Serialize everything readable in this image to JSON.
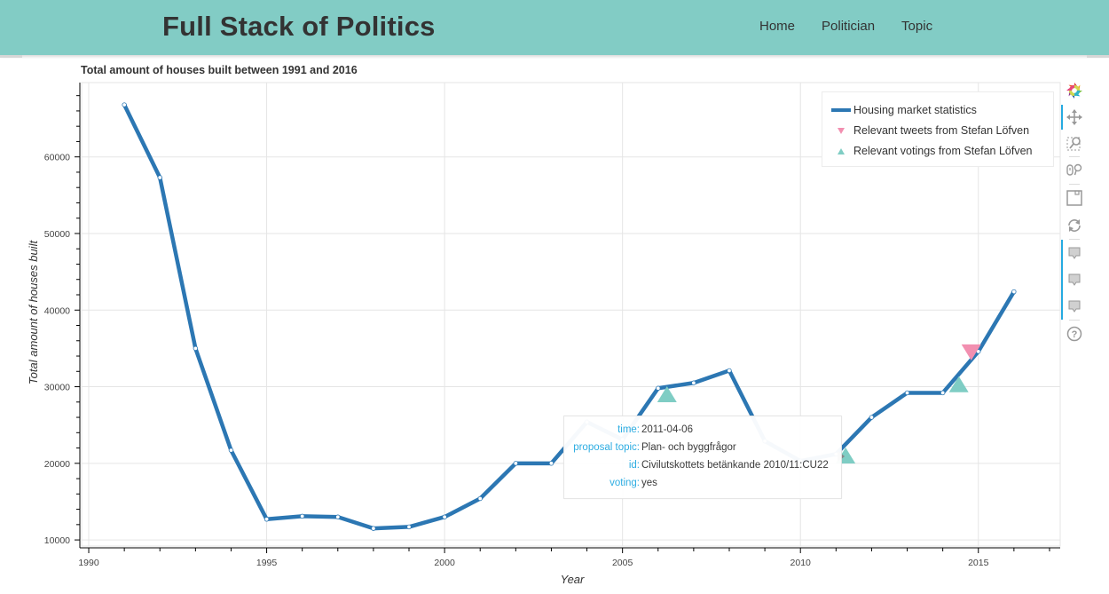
{
  "navbar": {
    "brand": "Full Stack of Politics",
    "links": [
      {
        "label": "Home"
      },
      {
        "label": "Politician"
      },
      {
        "label": "Topic"
      }
    ],
    "background": "#82ccc5"
  },
  "toolbar": {
    "tools": [
      {
        "name": "bokeh-logo-icon",
        "active": false
      },
      {
        "name": "pan-icon",
        "active": true
      },
      {
        "name": "box-zoom-icon",
        "active": false
      },
      {
        "name": "wheel-zoom-icon",
        "active": false
      },
      {
        "name": "save-icon",
        "active": false
      },
      {
        "name": "reset-icon",
        "active": false
      },
      {
        "name": "hover-icon",
        "active": true
      },
      {
        "name": "hover-icon",
        "active": true
      },
      {
        "name": "hover-icon",
        "active": true
      },
      {
        "name": "help-icon",
        "active": false
      }
    ]
  },
  "tooltip": {
    "rows": [
      {
        "key": "time:",
        "value": "2011-04-06"
      },
      {
        "key": "proposal topic:",
        "value": "Plan- och byggfrågor"
      },
      {
        "key": "id:",
        "value": "Civilutskottets betänkande 2010/11:CU22"
      },
      {
        "key": "voting:",
        "value": "yes"
      }
    ]
  },
  "chart_data": {
    "type": "line",
    "title": "Total amount of houses built between 1991 and 2016",
    "xlabel": "Year",
    "ylabel": "Total amount of houses built",
    "xlim": [
      1989.8,
      2017.3
    ],
    "ylim": [
      9200,
      69700
    ],
    "x_ticks": [
      1990,
      1995,
      2000,
      2005,
      2010,
      2015
    ],
    "x_minor_step": 1,
    "y_ticks": [
      10000,
      20000,
      30000,
      40000,
      50000,
      60000
    ],
    "y_minor_step": 2000,
    "grid": true,
    "legend_position": "top-right",
    "colors": {
      "line": "#2c77b3",
      "tweet": "#f28fb0",
      "voting": "#7fcdc4",
      "hover": "#888888"
    },
    "series": [
      {
        "name": "Housing market statistics",
        "kind": "line",
        "x": [
          1991,
          1992,
          1993,
          1994,
          1995,
          1996,
          1997,
          1998,
          1999,
          2000,
          2001,
          2002,
          2003,
          2004,
          2005,
          2006,
          2007,
          2008,
          2009,
          2010,
          2011,
          2012,
          2013,
          2014,
          2015,
          2016
        ],
        "y": [
          66800,
          57300,
          35000,
          21700,
          12700,
          13100,
          13000,
          11500,
          11700,
          13000,
          15400,
          20000,
          20000,
          25400,
          23100,
          29800,
          30500,
          32100,
          22900,
          20300,
          21200,
          26000,
          29200,
          29200,
          34600,
          42400
        ]
      },
      {
        "name": "Relevant tweets from Stefan Löfven",
        "kind": "inverted_triangle",
        "x": [
          2014.8
        ],
        "y": [
          34600
        ]
      },
      {
        "name": "Relevant votings from Stefan Löfven",
        "kind": "triangle",
        "x": [
          2006.25,
          2011.27,
          2014.45
        ],
        "y": [
          28900,
          20900,
          30200
        ]
      }
    ],
    "hovered_point": {
      "x": 2011.27,
      "y": 20900
    }
  }
}
